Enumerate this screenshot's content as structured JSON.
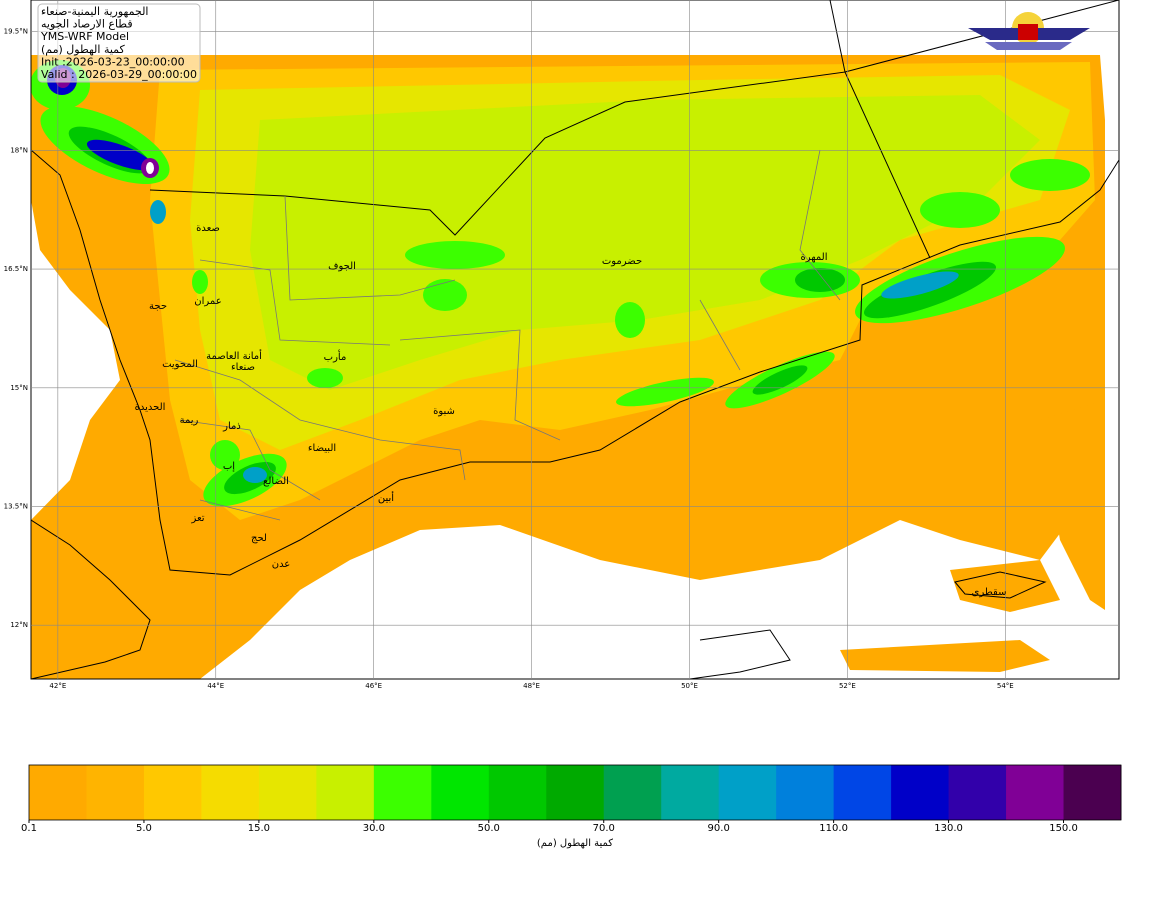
{
  "info_box": {
    "lines": [
      "الجمهورية اليمنية-صنعاء",
      "قطاع الارصاد الجويه",
      "YMS-WRF Model",
      "كمية الهطول (مم)",
      "Init :2026-03-23_00:00:00",
      "Valid : 2026-03-29_00:00:00"
    ]
  },
  "map": {
    "xlim": [
      41.66,
      55.44
    ],
    "ylim": [
      11.32,
      19.9
    ],
    "lon_ticks": [
      {
        "value": 42,
        "label": "42°E"
      },
      {
        "value": 44,
        "label": "44°E"
      },
      {
        "value": 46,
        "label": "46°E"
      },
      {
        "value": 48,
        "label": "48°E"
      },
      {
        "value": 50,
        "label": "50°E"
      },
      {
        "value": 52,
        "label": "52°E"
      },
      {
        "value": 54,
        "label": "54°E"
      }
    ],
    "lat_ticks": [
      {
        "value": 12,
        "label": "12°N"
      },
      {
        "value": 13.5,
        "label": "13.5°N"
      },
      {
        "value": 15,
        "label": "15°N"
      },
      {
        "value": 16.5,
        "label": "16.5°N"
      },
      {
        "value": 18,
        "label": "18°N"
      },
      {
        "value": 19.5,
        "label": "19.5°N"
      }
    ],
    "places": [
      "صعدة",
      "الجوف",
      "حضرموت",
      "المهرة",
      "حجة",
      "عمران",
      "أمانة العاصمة",
      "صنعاء",
      "المحويت",
      "مأرب",
      "الحديدة",
      "شبوة",
      "ريمة",
      "ذمار",
      "البيضاء",
      "إب",
      "الضالع",
      "أبين",
      "تعز",
      "لحج",
      "عدن",
      "سقطرى"
    ]
  },
  "colorbar": {
    "colors": [
      "#ffaa00",
      "#ffb400",
      "#ffc800",
      "#f5dc00",
      "#e6e600",
      "#c8f000",
      "#3cff00",
      "#00e600",
      "#00c800",
      "#00aa00",
      "#00a050",
      "#00aaa0",
      "#00a0c8",
      "#0080dc",
      "#0046e6",
      "#0000c8",
      "#3200aa",
      "#800096",
      "#4b0050"
    ],
    "ticks": [
      0.1,
      {
        "value": 5,
        "label": "5.0"
      },
      {
        "value": 15,
        "label": "15.0"
      },
      {
        "value": 30,
        "label": "30.0"
      },
      {
        "value": 50,
        "label": "50.0"
      },
      {
        "value": 70,
        "label": "70.0"
      },
      {
        "value": 90,
        "label": "90.0"
      },
      {
        "value": 110,
        "label": "110.0"
      },
      {
        "value": 130,
        "label": "130.0"
      },
      {
        "value": 150,
        "label": "150.0"
      }
    ],
    "label": "كمية الهطول (مم)"
  }
}
